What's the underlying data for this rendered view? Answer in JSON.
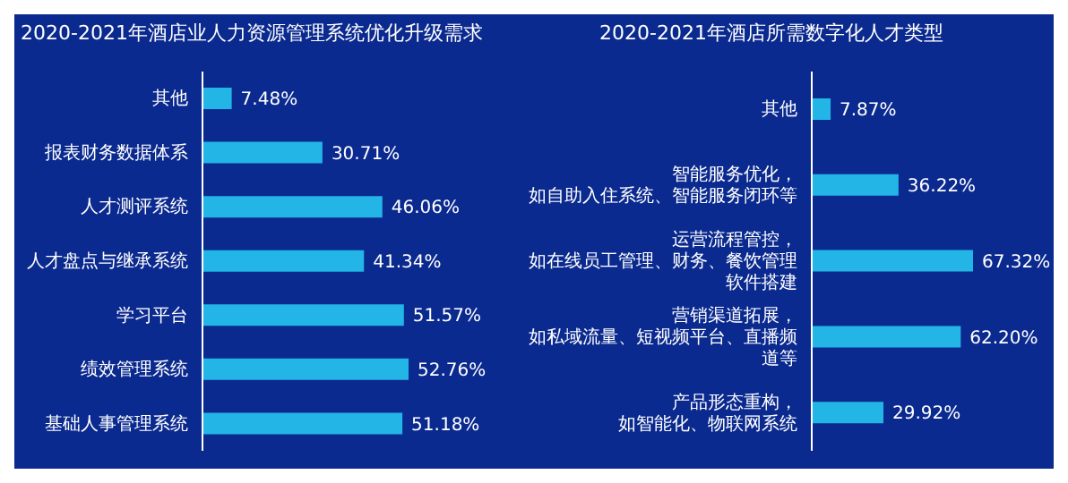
{
  "chart_data": [
    {
      "type": "bar",
      "orientation": "horizontal",
      "title": "2020-2021年酒店业人力资源管理系统优化升级需求",
      "categories": [
        "其他",
        "报表财务数据体系",
        "人才测评系统",
        "人才盘点与继承系统",
        "学习平台",
        "绩效管理系统",
        "基础人事管理系统"
      ],
      "values": [
        7.48,
        30.71,
        46.06,
        41.34,
        51.57,
        52.76,
        51.18
      ],
      "value_labels": [
        "7.48%",
        "30.71%",
        "46.06%",
        "41.34%",
        "51.57%",
        "52.76%",
        "51.18%"
      ],
      "color": "#22b5e6",
      "grid": false,
      "legend": false
    },
    {
      "type": "bar",
      "orientation": "horizontal",
      "title": "2020-2021年酒店所需数字化人才类型",
      "categories": [
        "其他",
        "智能服务优化，如自助入住系统、智能服务闭环等",
        "运营流程管控，如在线员工管理、财务、餐饮管理软件搭建",
        "营销渠道拓展，如私域流量、短视频平台、直播频道等",
        "产品形态重构，如智能化、物联网系统"
      ],
      "values": [
        7.87,
        36.22,
        67.32,
        62.2,
        29.92
      ],
      "value_labels": [
        "7.87%",
        "36.22%",
        "67.32%",
        "62.20%",
        "29.92%"
      ],
      "color": "#22b5e6",
      "grid": false,
      "legend": false
    }
  ]
}
